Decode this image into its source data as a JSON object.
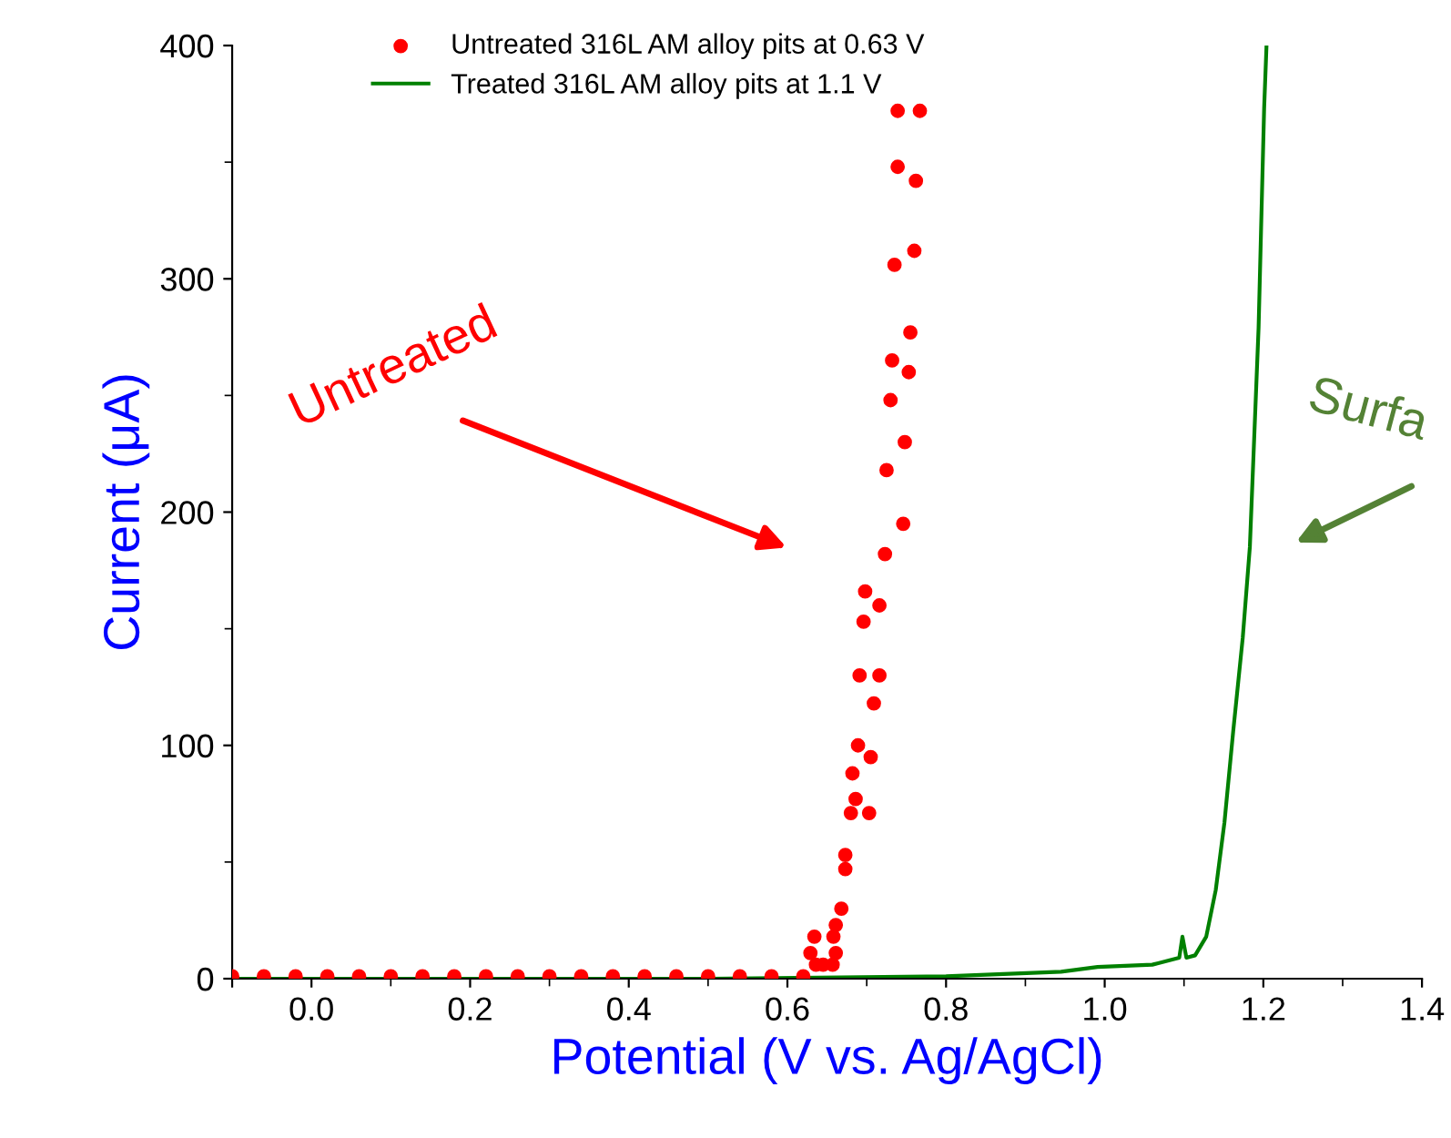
{
  "chart_data": {
    "type": "scatter",
    "xlabel": "Potential (V vs. Ag/AgCl)",
    "ylabel": "Current (μA)",
    "xlim": [
      -0.1,
      1.4
    ],
    "ylim": [
      0,
      400
    ],
    "xticks": [
      {
        "value": -0.1,
        "label": null
      },
      {
        "value": 0.0,
        "label": "0.0"
      },
      0.2,
      0.4,
      0.6,
      0.8,
      {
        "value": 1.0,
        "label": "1.0"
      },
      1.2,
      1.4
    ],
    "yticks": [
      0,
      100,
      200,
      300,
      400
    ],
    "grid": false,
    "legend": "top",
    "marker": "circle",
    "series": [
      {
        "name": "Untreated 316L AM alloy pits at 0.63 V",
        "color": "#ff0000",
        "x": [
          -0.1,
          -0.06,
          -0.02,
          0.02,
          0.06,
          0.1,
          0.14,
          0.18,
          0.22,
          0.26,
          0.3,
          0.34,
          0.38,
          0.42,
          0.46,
          0.5,
          0.54,
          0.58,
          0.62,
          0.629,
          0.634,
          0.636,
          0.645,
          0.657,
          0.658,
          0.661,
          0.661,
          0.668,
          0.673,
          0.673,
          0.68,
          0.682,
          0.686,
          0.689,
          0.691,
          0.696,
          0.698,
          0.703,
          0.705,
          0.709,
          0.716,
          0.716,
          0.723,
          0.725,
          0.73,
          0.732,
          0.735,
          0.739,
          0.739,
          0.746,
          0.748,
          0.753,
          0.755,
          0.76,
          0.762,
          0.767
        ],
        "values": [
          1,
          1,
          1,
          1,
          1,
          1,
          1,
          1,
          1,
          1,
          1,
          1,
          1,
          1,
          1,
          1,
          1,
          1,
          1,
          11,
          18,
          6,
          6,
          6,
          18,
          11,
          23,
          30,
          47,
          53,
          71,
          88,
          77,
          100,
          130,
          153,
          166,
          71,
          95,
          118,
          130,
          160,
          182,
          218,
          248,
          265,
          306,
          348,
          372,
          195,
          230,
          260,
          277,
          312,
          342,
          372
        ]
      },
      {
        "name": "Treated 316L AM alloy pits at 1.1 V",
        "color": "#008000",
        "type": "line",
        "marker": "none",
        "x": [
          -0.1,
          0.2,
          0.5,
          0.8,
          0.945,
          0.991,
          1.06,
          1.094,
          1.098,
          1.103,
          1.114,
          1.128,
          1.14,
          1.151,
          1.162,
          1.174,
          1.183,
          1.194,
          1.201,
          1.204
        ],
        "values": [
          0,
          0,
          0,
          1,
          3,
          5,
          6,
          9,
          18,
          9,
          10,
          18,
          38,
          67,
          106,
          146,
          185,
          279,
          373,
          400
        ]
      }
    ],
    "annotations": [
      "Untreated",
      "Surfa"
    ]
  }
}
